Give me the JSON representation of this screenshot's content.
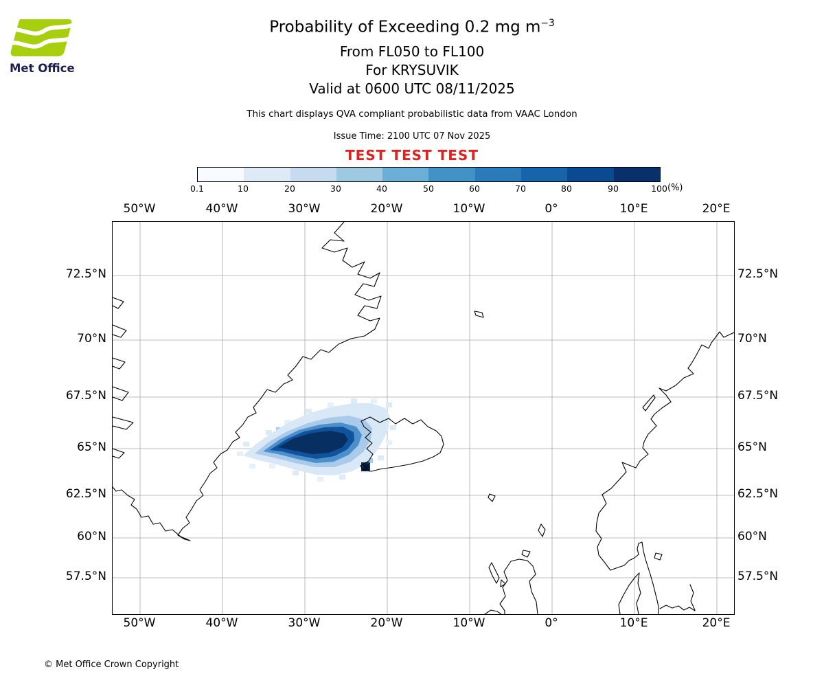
{
  "logo": {
    "brand": "Met Office"
  },
  "header": {
    "title": "Probability of Exceeding 0.2 mg m",
    "title_exponent": "−3",
    "line_flight_levels": "From FL050 to FL100",
    "line_volcano": "For KRYSUVIK",
    "line_valid": "Valid at 0600 UTC 08/11/2025",
    "qva_note": "This chart displays QVA compliant probabilistic data from VAAC London",
    "issue_time": "Issue Time: 2100 UTC 07 Nov 2025",
    "test_banner": "TEST TEST TEST",
    "test_banner_color": "#dd2222"
  },
  "colorbar": {
    "ticks": [
      "0.1",
      "10",
      "20",
      "30",
      "40",
      "50",
      "60",
      "70",
      "80",
      "90",
      "100"
    ],
    "unit_label": "(%)",
    "colors": [
      "#f7fbff",
      "#deebf7",
      "#c6dbef",
      "#9ecae1",
      "#6baed6",
      "#4292c6",
      "#2b7bba",
      "#1864aa",
      "#0a4a90",
      "#08306b"
    ]
  },
  "map": {
    "lon_labels": [
      "50°W",
      "40°W",
      "30°W",
      "20°W",
      "10°W",
      "0°",
      "10°E",
      "20°E"
    ],
    "lat_labels": [
      "72.5°N",
      "70°N",
      "67.5°N",
      "65°N",
      "62.5°N",
      "60°N",
      "57.5°N"
    ]
  },
  "footer": {
    "copyright_text": "© Met Office Crown Copyright"
  },
  "chart_data": {
    "type": "heatmap",
    "title": "Probability of Exceeding 0.2 mg m−3, From FL050 to FL100, For KRYSUVIK",
    "valid_time": "0600 UTC 08/11/2025",
    "issue_time": "2100 UTC 07 Nov 2025",
    "source_volcano": "KRYSUVIK",
    "data_source_note": "QVA compliant probabilistic data from VAAC London",
    "levels_percent": [
      0.1,
      10,
      20,
      30,
      40,
      50,
      60,
      70,
      80,
      90,
      100
    ],
    "palette": "Blues (light = low probability, dark navy = high probability)",
    "lon_range_deg": [
      -53.3,
      22.1
    ],
    "lat_range_deg": [
      55.1,
      74.1
    ],
    "gridlines": {
      "lon_step_deg": 10,
      "lat_step_deg": 2.5,
      "visible": true
    },
    "plume": {
      "description": "Ash-exceedance probability plume extending west-southwest from the Krysuvik source on the Reykjanes peninsula of Iceland over the Denmark Strait",
      "lon_extent_deg": [
        -37.5,
        -20.0
      ],
      "lat_extent_deg": [
        63.7,
        66.8
      ],
      "core_ge_90pct": {
        "lon_extent_deg": [
          -34.0,
          -24.5
        ],
        "lat_extent_deg": [
          64.3,
          65.9
        ]
      },
      "max_cell": {
        "lon_deg": -22.3,
        "lat_deg": 63.9,
        "probability_percent": 100
      }
    }
  }
}
